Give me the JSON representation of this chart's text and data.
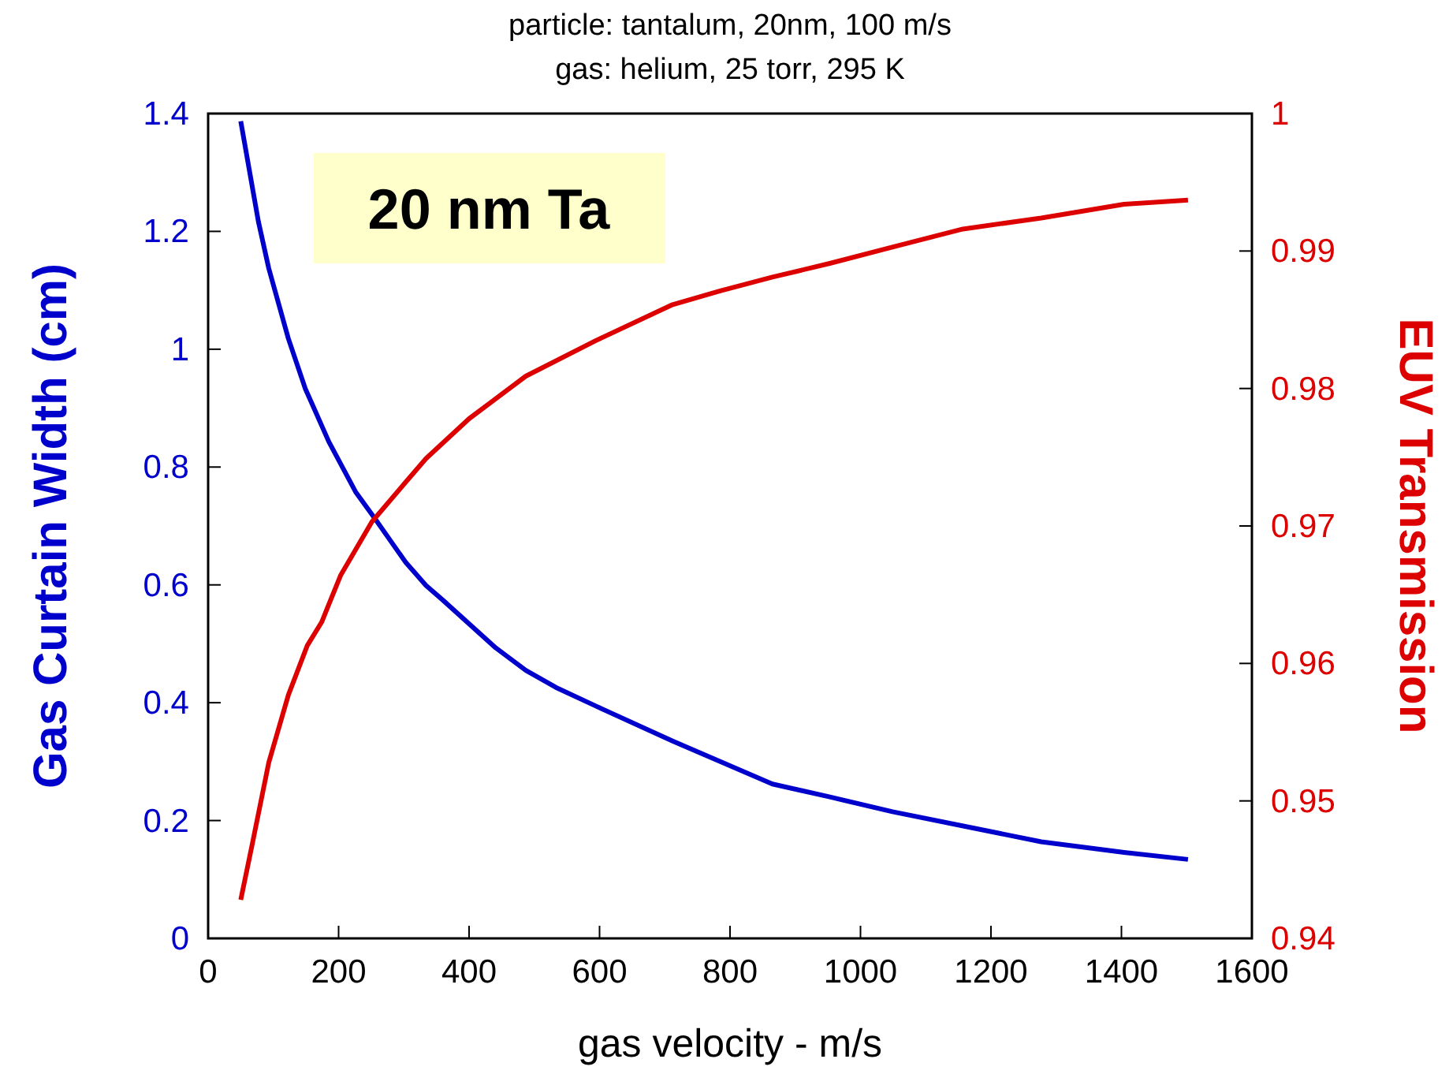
{
  "chart_data": {
    "type": "line",
    "title": "particle: tantalum, 20nm, 100 m/s",
    "subtitle": "gas: helium, 25 torr, 295 K",
    "xlabel": "gas velocity - m/s",
    "ylabel": "Gas Curtain Width (cm)",
    "y2label": "EUV Transmission",
    "annotations": [
      "20 nm Ta"
    ],
    "xlim": [
      0,
      1600
    ],
    "xticks": [
      0,
      200,
      400,
      600,
      800,
      1000,
      1200,
      1400,
      1600
    ],
    "ylim": [
      0,
      1.4
    ],
    "yticks": [
      0,
      0.2,
      0.4,
      0.6,
      0.8,
      1,
      1.2,
      1.4
    ],
    "y2lim": [
      0.94,
      1
    ],
    "y2ticks": [
      0.94,
      0.95,
      0.96,
      0.97,
      0.98,
      0.99,
      1
    ],
    "grid": false,
    "marker": "none",
    "line_style": "solid",
    "series": [
      {
        "color": "#0000cc",
        "x": [
          50,
          77,
          93,
          123,
          149,
          185,
          226,
          256,
          303,
          334,
          364,
          441,
          487,
          533,
          595,
          712,
          785,
          865,
          953,
          1049,
          1156,
          1277,
          1404,
          1502
        ],
        "values": [
          1.387,
          1.217,
          1.137,
          1.018,
          0.933,
          0.843,
          0.758,
          0.712,
          0.638,
          0.599,
          0.57,
          0.493,
          0.455,
          0.426,
          0.394,
          0.335,
          0.3,
          0.262,
          0.24,
          0.215,
          0.191,
          0.164,
          0.146,
          0.134
        ]
      },
      {
        "color": "#dd0000",
        "axis": "y2",
        "x": [
          50,
          67,
          93,
          123,
          152,
          174,
          203,
          251,
          303,
          334,
          400,
          487,
          595,
          712,
          785,
          865,
          953,
          1050,
          1157,
          1277,
          1404,
          1502
        ],
        "values": [
          0.9428,
          0.9467,
          0.9528,
          0.9577,
          0.9613,
          0.963,
          0.9664,
          0.9703,
          0.9732,
          0.9749,
          0.9778,
          0.9809,
          0.9835,
          0.9861,
          0.9871,
          0.9881,
          0.9891,
          0.9903,
          0.9916,
          0.9924,
          0.9934,
          0.9937
        ]
      }
    ]
  }
}
